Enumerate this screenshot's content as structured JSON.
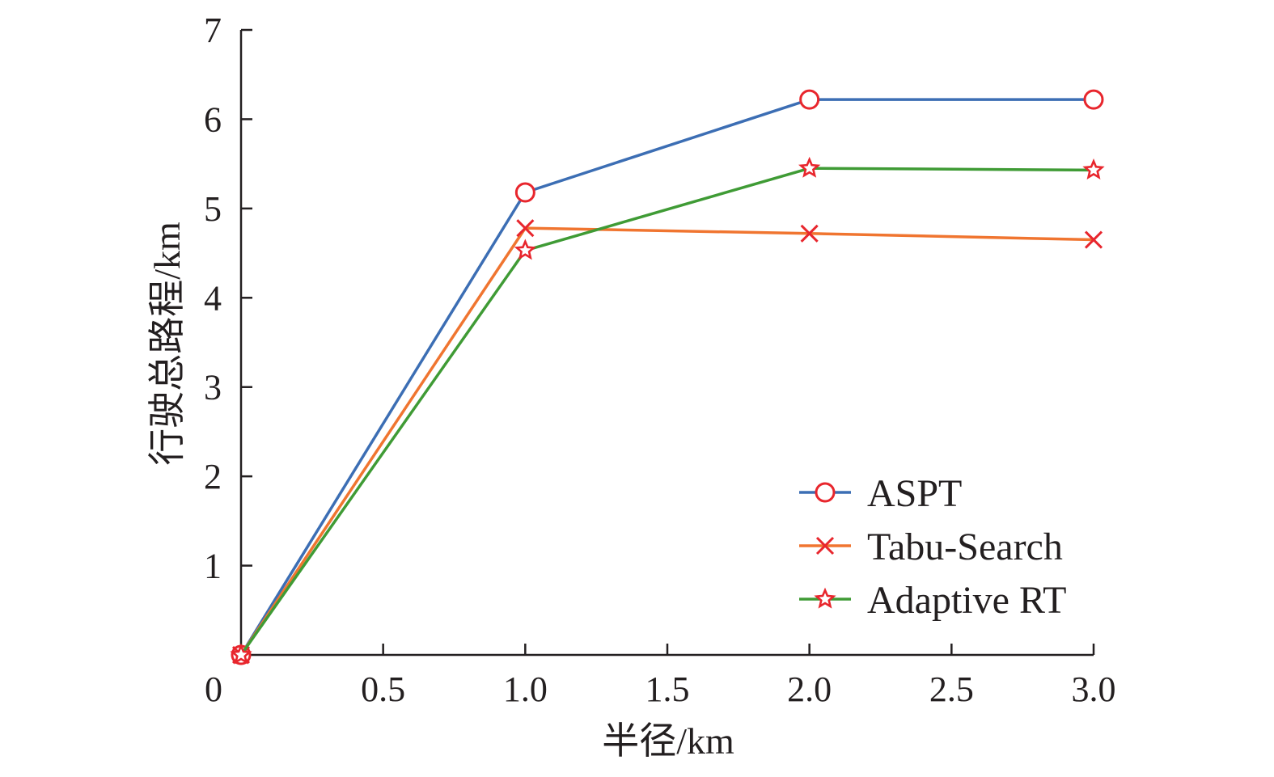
{
  "chart_data": {
    "type": "line",
    "title": "",
    "xlabel": "半径/km",
    "ylabel": "行驶总路程/km",
    "x": [
      0,
      1.0,
      2.0,
      3.0
    ],
    "x_positions": [
      0,
      1,
      2,
      3
    ],
    "xticks": [
      "0",
      "0.5",
      "1.0",
      "1.5",
      "2.0",
      "2.5",
      "3.0"
    ],
    "yticks": [
      "1",
      "2",
      "3",
      "4",
      "5",
      "6",
      "7"
    ],
    "xlim": [
      0,
      3
    ],
    "ylim": [
      0,
      7
    ],
    "grid": false,
    "legend_position": "bottom-right",
    "marker_color": "#e8262d",
    "series": [
      {
        "name": "ASPT",
        "values": [
          0,
          5.18,
          6.22,
          6.22
        ],
        "color": "#3c6eb4",
        "marker": "circle"
      },
      {
        "name": "Tabu-Search",
        "values": [
          0,
          4.78,
          4.72,
          4.65
        ],
        "color": "#f07530",
        "marker": "x"
      },
      {
        "name": "Adaptive RT",
        "values": [
          0,
          4.53,
          5.45,
          5.43
        ],
        "color": "#3f9b35",
        "marker": "star"
      }
    ]
  }
}
